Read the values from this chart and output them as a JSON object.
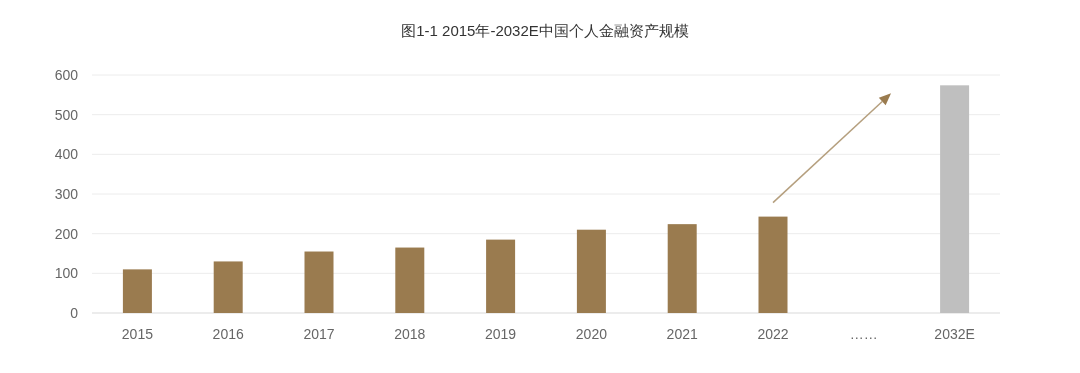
{
  "chart_data": {
    "type": "bar",
    "title": "图1-1 2015年-2032E中国个人金融资产规模",
    "categories": [
      "2015",
      "2016",
      "2017",
      "2018",
      "2019",
      "2020",
      "2021",
      "2022",
      "……",
      "2032E"
    ],
    "values": [
      110,
      130,
      155,
      165,
      185,
      210,
      224,
      243,
      null,
      574
    ],
    "colors": [
      "#9a7b4f",
      "#9a7b4f",
      "#9a7b4f",
      "#9a7b4f",
      "#9a7b4f",
      "#9a7b4f",
      "#9a7b4f",
      "#9a7b4f",
      null,
      "#bfbfbf"
    ],
    "ylim": [
      0,
      600
    ],
    "yticks": [
      0,
      100,
      200,
      300,
      400,
      500,
      600
    ],
    "grid": "y"
  }
}
